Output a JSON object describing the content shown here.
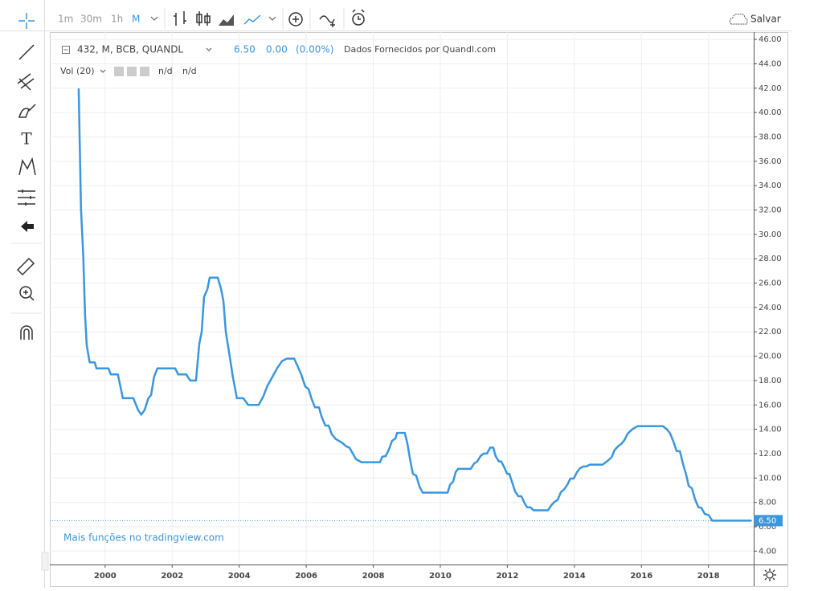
{
  "toolbar": {
    "intervals": [
      "1m",
      "30m",
      "1h",
      "M"
    ],
    "save": "Salvar"
  },
  "legend": {
    "change": "0.00",
    "change_pct": "(0.00%)",
    "source": "Dados Fornecidos por Quandl.com",
    "volume": "Vol (20)",
    "vol_values": [
      "n/d",
      "n/d"
    ]
  },
  "footer_link": "Mais funções no tradingview.com",
  "chart_data": {
    "type": "line",
    "x": [
      1999.21,
      1999.28,
      1999.35,
      1999.4,
      1999.45,
      1999.54,
      1999.69,
      1999.74,
      2000.1,
      2000.17,
      2000.38,
      2000.53,
      2000.84,
      2000.98,
      2001.08,
      2001.18,
      2001.29,
      2001.37,
      2001.46,
      2001.56,
      2002.09,
      2002.18,
      2002.42,
      2002.54,
      2002.71,
      2002.81,
      2002.88,
      2002.95,
      2003.05,
      2003.12,
      2003.36,
      2003.46,
      2003.53,
      2003.6,
      2003.74,
      2003.81,
      2003.93,
      2004.12,
      2004.27,
      2004.58,
      2004.72,
      2004.84,
      2004.99,
      2005.13,
      2005.28,
      2005.42,
      2005.64,
      2005.73,
      2005.85,
      2005.97,
      2006.07,
      2006.16,
      2006.26,
      2006.38,
      2006.45,
      2006.57,
      2006.67,
      2006.76,
      2006.88,
      2007.07,
      2007.19,
      2007.29,
      2007.39,
      2007.48,
      2007.65,
      2008.2,
      2008.27,
      2008.37,
      2008.47,
      2008.56,
      2008.66,
      2008.71,
      2008.94,
      2009.02,
      2009.11,
      2009.18,
      2009.28,
      2009.38,
      2009.47,
      2010.22,
      2010.29,
      2010.38,
      2010.46,
      2010.53,
      2010.91,
      2011.01,
      2011.1,
      2011.2,
      2011.29,
      2011.39,
      2011.49,
      2011.58,
      2011.65,
      2011.75,
      2011.82,
      2011.92,
      2011.99,
      2012.06,
      2012.16,
      2012.23,
      2012.33,
      2012.42,
      2012.52,
      2012.59,
      2012.69,
      2012.78,
      2013.21,
      2013.31,
      2013.41,
      2013.5,
      2013.6,
      2013.69,
      2013.79,
      2013.88,
      2013.98,
      2014.08,
      2014.17,
      2014.27,
      2014.36,
      2014.46,
      2014.84,
      2014.99,
      2015.11,
      2015.2,
      2015.32,
      2015.4,
      2015.49,
      2015.59,
      2015.73,
      2015.88,
      2016.64,
      2016.76,
      2016.86,
      2016.96,
      2017.05,
      2017.15,
      2017.24,
      2017.34,
      2017.41,
      2017.51,
      2017.6,
      2017.7,
      2017.79,
      2017.89,
      2018.01,
      2018.11,
      2019.28
    ],
    "series": [
      {
        "name": "432, M, BCB, QUANDL",
        "color": "#3a96dd",
        "values": [
          41.98,
          32.1,
          28.1,
          23.5,
          20.9,
          19.5,
          19.5,
          19.0,
          19.0,
          18.5,
          18.5,
          16.55,
          16.55,
          15.6,
          15.2,
          15.6,
          16.55,
          16.8,
          18.3,
          19.0,
          19.0,
          18.5,
          18.5,
          18.0,
          18.0,
          21.0,
          22.0,
          24.85,
          25.5,
          26.45,
          26.45,
          25.5,
          24.5,
          22.0,
          19.6,
          18.3,
          16.55,
          16.55,
          16.0,
          16.0,
          16.7,
          17.55,
          18.3,
          19.0,
          19.6,
          19.8,
          19.8,
          19.25,
          18.5,
          17.5,
          17.3,
          16.5,
          15.8,
          15.8,
          15.1,
          14.3,
          14.3,
          13.6,
          13.2,
          12.9,
          12.6,
          12.5,
          12.0,
          11.55,
          11.3,
          11.3,
          11.75,
          11.8,
          12.35,
          13.05,
          13.25,
          13.7,
          13.7,
          12.8,
          11.35,
          10.35,
          10.2,
          9.3,
          8.8,
          8.8,
          9.45,
          9.7,
          10.5,
          10.75,
          10.75,
          11.2,
          11.35,
          11.8,
          12.0,
          12.0,
          12.5,
          12.5,
          11.8,
          11.35,
          11.35,
          10.8,
          10.35,
          10.35,
          9.5,
          8.9,
          8.5,
          8.5,
          7.9,
          7.6,
          7.6,
          7.35,
          7.35,
          7.75,
          8.05,
          8.2,
          8.85,
          9.05,
          9.45,
          9.95,
          9.95,
          10.5,
          10.8,
          10.95,
          10.95,
          11.1,
          11.1,
          11.4,
          11.7,
          12.3,
          12.65,
          12.8,
          13.1,
          13.65,
          14.0,
          14.25,
          14.25,
          14.0,
          13.65,
          12.95,
          12.2,
          12.2,
          11.15,
          10.2,
          9.35,
          9.15,
          8.25,
          7.6,
          7.55,
          7.05,
          6.95,
          6.5,
          6.5
        ]
      }
    ],
    "last_price": {
      "value": 6.5,
      "label": "6.50"
    },
    "xlim": [
      1998.35,
      2019.35
    ],
    "xticks": [
      2000,
      2002,
      2004,
      2006,
      2008,
      2010,
      2012,
      2014,
      2016,
      2018
    ],
    "ylim": [
      2.9,
      46.6
    ],
    "yticks": [
      {
        "value": 4,
        "label": "4.00"
      },
      {
        "value": 6,
        "label": "6.00"
      },
      {
        "value": 8,
        "label": "8.00"
      },
      {
        "value": 10,
        "label": "10.00"
      },
      {
        "value": 12,
        "label": "12.00"
      },
      {
        "value": 14,
        "label": "14.00"
      },
      {
        "value": 16,
        "label": "16.00"
      },
      {
        "value": 18,
        "label": "18.00"
      },
      {
        "value": 20,
        "label": "20.00"
      },
      {
        "value": 22,
        "label": "22.00"
      },
      {
        "value": 24,
        "label": "24.00"
      },
      {
        "value": 26,
        "label": "26.00"
      },
      {
        "value": 28,
        "label": "28.00"
      },
      {
        "value": 30,
        "label": "30.00"
      },
      {
        "value": 32,
        "label": "32.00"
      },
      {
        "value": 34,
        "label": "34.00"
      },
      {
        "value": 36,
        "label": "36.00"
      },
      {
        "value": 38,
        "label": "38.00"
      },
      {
        "value": 40,
        "label": "40.00"
      },
      {
        "value": 42,
        "label": "42.00"
      },
      {
        "value": 44,
        "label": "44.00"
      },
      {
        "value": 46,
        "label": "46.00"
      }
    ],
    "grid": true
  }
}
